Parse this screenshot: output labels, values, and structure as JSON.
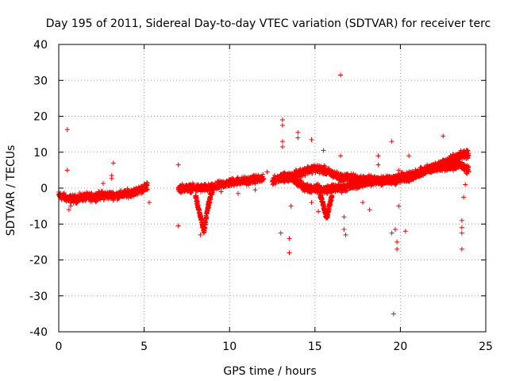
{
  "chart_data": {
    "type": "scatter",
    "title": "Day 195 of 2011, Sidereal Day-to-day VTEC variation (SDTVAR) for receiver terc",
    "xlabel": "GPS time / hours",
    "ylabel": "SDTVAR / TECUs",
    "xlim": [
      0,
      25
    ],
    "ylim": [
      -40,
      40
    ],
    "xticks": [
      0,
      5,
      10,
      15,
      20,
      25
    ],
    "yticks": [
      -40,
      -30,
      -20,
      -10,
      0,
      10,
      20,
      30,
      40
    ],
    "grid": true,
    "marker": "+",
    "color": "#ff0000",
    "series": [
      {
        "name": "SDTVAR",
        "segments": [
          {
            "x": [
              0.0,
              0.3,
              0.6,
              1.0,
              1.5,
              2.0,
              2.5,
              3.0,
              3.5,
              4.0,
              4.5,
              5.0,
              5.2
            ],
            "y": [
              -2,
              -2.5,
              -3,
              -3,
              -2.5,
              -2.5,
              -2,
              -2,
              -2,
              -1.5,
              -1,
              0,
              0.5
            ]
          },
          {
            "x": [
              7.0,
              7.5,
              8.0,
              8.5,
              9.0,
              9.5,
              10.0,
              10.5,
              11.0,
              11.5,
              12.0
            ],
            "y": [
              0,
              0,
              0,
              0,
              0,
              1,
              1.5,
              2,
              2,
              2.5,
              2.5
            ]
          },
          {
            "x": [
              12.5,
              13.0,
              13.5,
              14.0,
              14.5,
              15.0,
              15.5,
              16.0,
              16.5,
              17.0,
              17.5,
              18.0,
              18.5,
              19.0,
              19.5,
              20.0,
              20.5,
              21.0,
              21.5,
              22.0,
              22.5,
              23.0,
              23.5,
              24.0
            ],
            "y": [
              2,
              3,
              3,
              4,
              5,
              5.5,
              5,
              4,
              3,
              3,
              2.5,
              2.5,
              2,
              2,
              2,
              2.5,
              3,
              4,
              5,
              6,
              7,
              8,
              9,
              9.5
            ]
          },
          {
            "x": [
              13.0,
              13.5,
              14.0,
              14.5,
              15.0,
              15.5,
              16.0,
              16.5,
              17.0,
              17.5,
              18.0,
              18.5,
              19.0,
              19.5,
              20.0,
              20.5,
              21.0,
              21.5,
              22.0,
              22.5,
              23.0,
              23.5,
              24.0
            ],
            "y": [
              3,
              3,
              1.5,
              0,
              0,
              -0.5,
              0,
              0,
              0.5,
              1,
              1.5,
              2,
              2.5,
              2.5,
              3,
              3.5,
              4,
              5,
              5.5,
              6,
              6,
              6.5,
              5
            ]
          }
        ],
        "dips": [
          {
            "x": [
              8.0,
              8.1,
              8.2,
              8.3,
              8.4,
              8.5,
              8.6,
              8.7,
              8.8,
              8.9,
              9.0
            ],
            "y": [
              -2,
              -4,
              -6,
              -8,
              -10,
              -12,
              -9,
              -6,
              -4,
              -2,
              -1
            ]
          },
          {
            "x": [
              15.3,
              15.4,
              15.5,
              15.6,
              15.7,
              15.8,
              15.9,
              16.0
            ],
            "y": [
              -2,
              -3,
              -5,
              -7,
              -8,
              -6,
              -4,
              -2
            ]
          }
        ],
        "outliers": [
          {
            "x": 0.5,
            "y": 16.3
          },
          {
            "x": 0.5,
            "y": 5
          },
          {
            "x": 0.6,
            "y": -6
          },
          {
            "x": 0.7,
            "y": -5
          },
          {
            "x": 3.2,
            "y": 7
          },
          {
            "x": 3.1,
            "y": 3.5
          },
          {
            "x": 3.1,
            "y": 2.7
          },
          {
            "x": 2.6,
            "y": 1.3
          },
          {
            "x": 5.3,
            "y": -4
          },
          {
            "x": 7.0,
            "y": 6.5
          },
          {
            "x": 7.0,
            "y": -10.5
          },
          {
            "x": 8.3,
            "y": -13
          },
          {
            "x": 8.4,
            "y": -11
          },
          {
            "x": 9.5,
            "y": -1
          },
          {
            "x": 10.5,
            "y": -1.5
          },
          {
            "x": 11.5,
            "y": -0.5
          },
          {
            "x": 12.2,
            "y": 4.5
          },
          {
            "x": 13.0,
            "y": -12.5
          },
          {
            "x": 13.1,
            "y": 19
          },
          {
            "x": 13.1,
            "y": 17.5
          },
          {
            "x": 13.1,
            "y": 13
          },
          {
            "x": 13.1,
            "y": 11.5
          },
          {
            "x": 13.5,
            "y": -14
          },
          {
            "x": 13.5,
            "y": -18
          },
          {
            "x": 13.6,
            "y": -5
          },
          {
            "x": 14.0,
            "y": 15.5
          },
          {
            "x": 14.0,
            "y": 14
          },
          {
            "x": 14.8,
            "y": 13.5
          },
          {
            "x": 14.8,
            "y": -4
          },
          {
            "x": 15.2,
            "y": -6.5
          },
          {
            "x": 15.5,
            "y": 10.5
          },
          {
            "x": 15.5,
            "y": -4.5
          },
          {
            "x": 16.5,
            "y": 31.5
          },
          {
            "x": 16.5,
            "y": 9
          },
          {
            "x": 16.7,
            "y": -8
          },
          {
            "x": 16.7,
            "y": -11.5
          },
          {
            "x": 16.8,
            "y": -13
          },
          {
            "x": 17.8,
            "y": -4
          },
          {
            "x": 18.2,
            "y": -6
          },
          {
            "x": 18.7,
            "y": 9
          },
          {
            "x": 18.7,
            "y": 6.5
          },
          {
            "x": 19.5,
            "y": 13
          },
          {
            "x": 19.5,
            "y": -12.5
          },
          {
            "x": 19.6,
            "y": -35
          },
          {
            "x": 19.7,
            "y": -11.5
          },
          {
            "x": 19.8,
            "y": -15
          },
          {
            "x": 19.8,
            "y": -17
          },
          {
            "x": 19.9,
            "y": 5
          },
          {
            "x": 19.9,
            "y": -5
          },
          {
            "x": 20.3,
            "y": -12
          },
          {
            "x": 20.5,
            "y": 9
          },
          {
            "x": 22.5,
            "y": 14.5
          },
          {
            "x": 23.6,
            "y": -9
          },
          {
            "x": 23.6,
            "y": -11
          },
          {
            "x": 23.6,
            "y": -12.5
          },
          {
            "x": 23.6,
            "y": -17
          },
          {
            "x": 23.7,
            "y": -2.5
          },
          {
            "x": 23.9,
            "y": 4
          },
          {
            "x": 23.8,
            "y": 1
          }
        ]
      }
    ]
  }
}
